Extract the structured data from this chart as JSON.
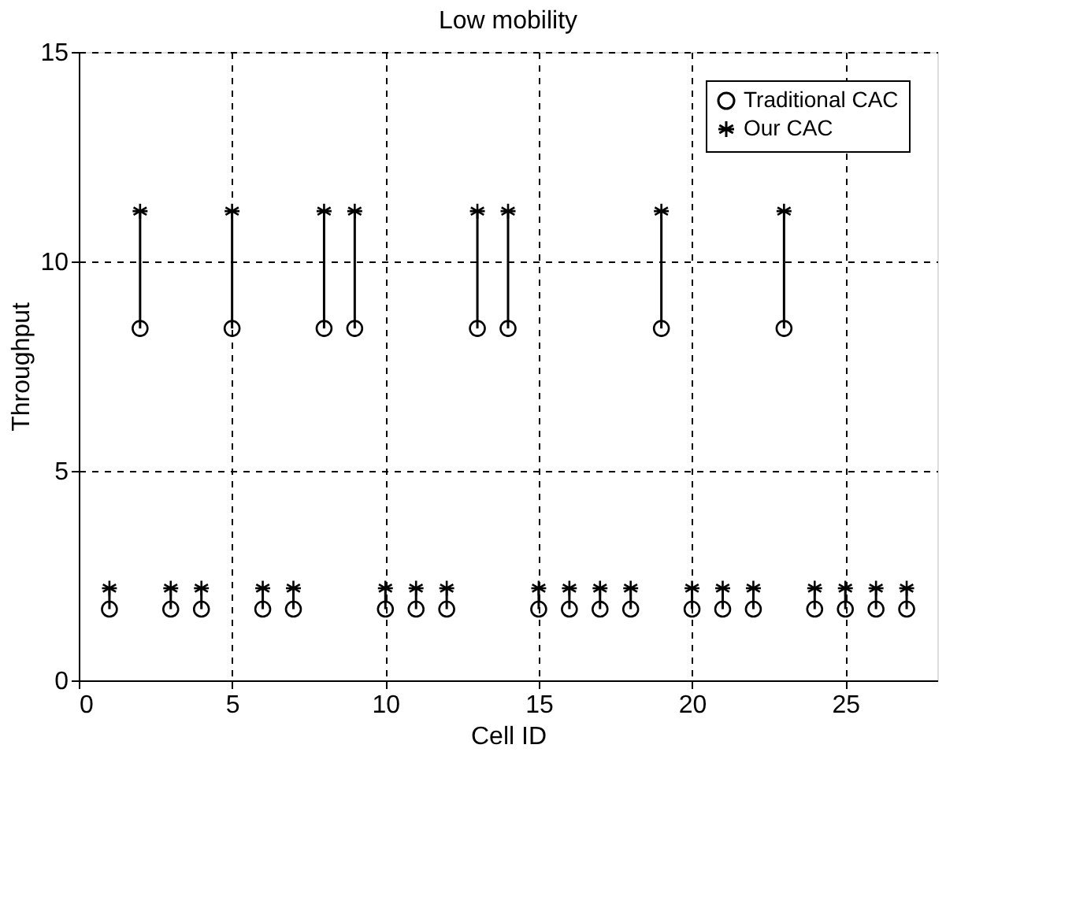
{
  "chart_data": {
    "type": "scatter",
    "title": "Low mobility",
    "xlabel": "Cell ID",
    "ylabel": "Throughput",
    "x": [
      1,
      2,
      3,
      4,
      5,
      6,
      7,
      8,
      9,
      10,
      11,
      12,
      13,
      14,
      15,
      16,
      17,
      18,
      19,
      20,
      21,
      22,
      23,
      24,
      25,
      26,
      27
    ],
    "series": [
      {
        "name": "Traditional CAC",
        "color": "#000000",
        "marker": "circle",
        "values": [
          1.7,
          8.4,
          1.7,
          1.7,
          8.4,
          1.7,
          1.7,
          8.4,
          8.4,
          1.7,
          1.7,
          1.7,
          8.4,
          8.4,
          1.7,
          1.7,
          1.7,
          1.7,
          8.4,
          1.7,
          1.7,
          1.7,
          8.4,
          1.7,
          1.7,
          1.7,
          1.7
        ],
        "errors": [
          [
            1.7,
            2.2
          ],
          [
            8.4,
            11.2
          ],
          [
            1.7,
            2.2
          ],
          [
            1.7,
            2.2
          ],
          [
            8.4,
            11.2
          ],
          [
            1.7,
            2.2
          ],
          [
            1.7,
            2.2
          ],
          [
            8.4,
            11.2
          ],
          [
            8.4,
            11.2
          ],
          [
            1.7,
            2.2
          ],
          [
            1.7,
            2.2
          ],
          [
            1.7,
            2.2
          ],
          [
            8.4,
            11.2
          ],
          [
            8.4,
            11.2
          ],
          [
            1.7,
            2.2
          ],
          [
            1.7,
            2.2
          ],
          [
            1.7,
            2.2
          ],
          [
            1.7,
            2.2
          ],
          [
            8.4,
            11.2
          ],
          [
            1.7,
            2.2
          ],
          [
            1.7,
            2.2
          ],
          [
            1.7,
            2.2
          ],
          [
            8.4,
            11.2
          ],
          [
            1.7,
            2.2
          ],
          [
            1.7,
            2.2
          ],
          [
            1.7,
            2.2
          ],
          [
            1.7,
            2.2
          ]
        ]
      },
      {
        "name": "Our CAC",
        "color": "#000000",
        "marker": "cross",
        "values": [
          2.2,
          11.2,
          2.2,
          2.2,
          11.2,
          2.2,
          2.2,
          11.2,
          11.2,
          2.2,
          2.2,
          2.2,
          11.2,
          11.2,
          2.2,
          2.2,
          2.2,
          2.2,
          11.2,
          2.2,
          2.2,
          2.2,
          11.2,
          2.2,
          2.2,
          2.2,
          2.2
        ]
      }
    ],
    "xlim": [
      0,
      28
    ],
    "xticks": [
      0,
      5,
      10,
      15,
      20,
      25
    ],
    "ylim": [
      0,
      15
    ],
    "yticks": [
      0,
      5,
      10,
      15
    ],
    "grid": true,
    "legend": "top right"
  }
}
